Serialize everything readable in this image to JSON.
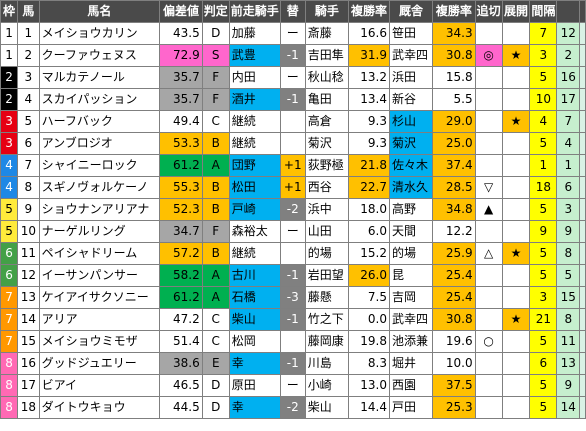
{
  "headers": [
    "枠",
    "馬",
    "馬名",
    "偏差値",
    "判定",
    "前走騎手",
    "替",
    "騎手",
    "複勝率",
    "厩舎",
    "複勝率",
    "追切",
    "展開",
    "間隔",
    "",
    ""
  ],
  "rows": [
    {
      "waku": "1",
      "uma": "1",
      "name": "メイショウカリン",
      "hensa": "43.5",
      "grade": "D",
      "prev": "加藤",
      "kae": "ー",
      "jockey": "斎藤",
      "jrate": "16.6",
      "stable": "笹田",
      "srate": "34.3",
      "oikiri": "",
      "tenkai": "",
      "kankaku": "7",
      "x1": "12",
      "x2": ""
    },
    {
      "waku": "1",
      "uma": "2",
      "name": "クーファウェヌス",
      "hensa": "72.9",
      "grade": "S",
      "prev": "武豊",
      "kae": "-1",
      "jockey": "吉田隼",
      "jrate": "31.9",
      "stable": "武幸四",
      "srate": "30.8",
      "oikiri": "◎",
      "tenkai": "★",
      "kankaku": "3",
      "x1": "2",
      "x2": ""
    },
    {
      "waku": "2",
      "uma": "3",
      "name": "マルカテノール",
      "hensa": "35.7",
      "grade": "F",
      "prev": "内田",
      "kae": "ー",
      "jockey": "秋山稔",
      "jrate": "13.2",
      "stable": "浜田",
      "srate": "15.8",
      "oikiri": "",
      "tenkai": "",
      "kankaku": "5",
      "x1": "16",
      "x2": ""
    },
    {
      "waku": "2",
      "uma": "4",
      "name": "スカイパッション",
      "hensa": "35.7",
      "grade": "F",
      "prev": "酒井",
      "kae": "-1",
      "jockey": "亀田",
      "jrate": "13.4",
      "stable": "新谷",
      "srate": "5.5",
      "oikiri": "",
      "tenkai": "",
      "kankaku": "10",
      "x1": "17",
      "x2": ""
    },
    {
      "waku": "3",
      "uma": "5",
      "name": "ハーフバック",
      "hensa": "49.4",
      "grade": "C",
      "prev": "継続",
      "kae": "",
      "jockey": "高倉",
      "jrate": "9.3",
      "stable": "杉山",
      "srate": "29.0",
      "oikiri": "",
      "tenkai": "★",
      "kankaku": "4",
      "x1": "7",
      "x2": ""
    },
    {
      "waku": "3",
      "uma": "6",
      "name": "アンブロジオ",
      "hensa": "53.3",
      "grade": "B",
      "prev": "継続",
      "kae": "",
      "jockey": "菊沢",
      "jrate": "9.3",
      "stable": "菊沢",
      "srate": "25.0",
      "oikiri": "",
      "tenkai": "",
      "kankaku": "5",
      "x1": "4",
      "x2": ""
    },
    {
      "waku": "4",
      "uma": "7",
      "name": "シャイニーロック",
      "hensa": "61.2",
      "grade": "A",
      "prev": "団野",
      "kae": "+1",
      "jockey": "荻野極",
      "jrate": "21.8",
      "stable": "佐々木",
      "srate": "37.4",
      "oikiri": "",
      "tenkai": "",
      "kankaku": "1",
      "x1": "1",
      "x2": ""
    },
    {
      "waku": "4",
      "uma": "8",
      "name": "スギノヴォルケーノ",
      "hensa": "55.3",
      "grade": "B",
      "prev": "松田",
      "kae": "+1",
      "jockey": "西谷",
      "jrate": "22.7",
      "stable": "清水久",
      "srate": "28.5",
      "oikiri": "▽",
      "tenkai": "",
      "kankaku": "18",
      "x1": "6",
      "x2": ""
    },
    {
      "waku": "5",
      "uma": "9",
      "name": "ショウナンアリアナ",
      "hensa": "52.3",
      "grade": "B",
      "prev": "戸崎",
      "kae": "-2",
      "jockey": "浜中",
      "jrate": "18.0",
      "stable": "高野",
      "srate": "34.8",
      "oikiri": "▲",
      "tenkai": "",
      "kankaku": "5",
      "x1": "3",
      "x2": ""
    },
    {
      "waku": "5",
      "uma": "10",
      "name": "ナーゲルリング",
      "hensa": "34.7",
      "grade": "F",
      "prev": "森裕太",
      "kae": "ー",
      "jockey": "山田",
      "jrate": "6.0",
      "stable": "天間",
      "srate": "12.2",
      "oikiri": "",
      "tenkai": "",
      "kankaku": "9",
      "x1": "9",
      "x2": ""
    },
    {
      "waku": "6",
      "uma": "11",
      "name": "ペイシャドリーム",
      "hensa": "57.2",
      "grade": "B",
      "prev": "継続",
      "kae": "",
      "jockey": "的場",
      "jrate": "15.2",
      "stable": "的場",
      "srate": "25.9",
      "oikiri": "△",
      "tenkai": "★",
      "kankaku": "5",
      "x1": "8",
      "x2": ""
    },
    {
      "waku": "6",
      "uma": "12",
      "name": "イーサンパンサー",
      "hensa": "58.2",
      "grade": "A",
      "prev": "古川",
      "kae": "-1",
      "jockey": "岩田望",
      "jrate": "26.0",
      "stable": "昆",
      "srate": "25.4",
      "oikiri": "",
      "tenkai": "",
      "kankaku": "5",
      "x1": "5",
      "x2": ""
    },
    {
      "waku": "7",
      "uma": "13",
      "name": "ケイアイサクソニー",
      "hensa": "61.2",
      "grade": "A",
      "prev": "石橋",
      "kae": "-3",
      "jockey": "藤懸",
      "jrate": "7.5",
      "stable": "吉岡",
      "srate": "25.4",
      "oikiri": "",
      "tenkai": "",
      "kankaku": "3",
      "x1": "15",
      "x2": ""
    },
    {
      "waku": "7",
      "uma": "14",
      "name": "アリア",
      "hensa": "47.2",
      "grade": "C",
      "prev": "柴山",
      "kae": "-1",
      "jockey": "竹之下",
      "jrate": "0.0",
      "stable": "武幸四",
      "srate": "30.8",
      "oikiri": "",
      "tenkai": "★",
      "kankaku": "21",
      "x1": "8",
      "x2": ""
    },
    {
      "waku": "7",
      "uma": "15",
      "name": "メイショウミモザ",
      "hensa": "51.4",
      "grade": "C",
      "prev": "松岡",
      "kae": "",
      "jockey": "藤岡康",
      "jrate": "19.8",
      "stable": "池添兼",
      "srate": "19.6",
      "oikiri": "○",
      "tenkai": "",
      "kankaku": "5",
      "x1": "11",
      "x2": ""
    },
    {
      "waku": "8",
      "uma": "16",
      "name": "グッドジュエリー",
      "hensa": "38.6",
      "grade": "E",
      "prev": "幸",
      "kae": "-1",
      "jockey": "川島",
      "jrate": "8.3",
      "stable": "堀井",
      "srate": "10.0",
      "oikiri": "",
      "tenkai": "",
      "kankaku": "6",
      "x1": "13",
      "x2": ""
    },
    {
      "waku": "8",
      "uma": "17",
      "name": "ビアイ",
      "hensa": "46.5",
      "grade": "D",
      "prev": "原田",
      "kae": "ー",
      "jockey": "小崎",
      "jrate": "13.0",
      "stable": "西園",
      "srate": "37.5",
      "oikiri": "",
      "tenkai": "",
      "kankaku": "5",
      "x1": "9",
      "x2": ""
    },
    {
      "waku": "8",
      "uma": "18",
      "name": "ダイトウキョウ",
      "hensa": "44.5",
      "grade": "D",
      "prev": "幸",
      "kae": "-2",
      "jockey": "柴山",
      "jrate": "14.4",
      "stable": "戸田",
      "srate": "25.3",
      "oikiri": "",
      "tenkai": "",
      "kankaku": "5",
      "x1": "14",
      "x2": ""
    }
  ],
  "colors": {
    "waku1": "#ffffff",
    "waku2": "#000000",
    "waku3": "#e60012",
    "waku4": "#1e88e5",
    "waku5": "#ffeb3b",
    "waku6": "#43a047",
    "waku7": "#ff9800",
    "waku8": "#ff69b4",
    "hensa_s": "#ff66cc",
    "hensa_a": "#00b050",
    "hensa_b": "#ffc000",
    "hensa_low": "#5b9bd5",
    "prev_changed": "#00b0f0",
    "minus": "#808080",
    "plus": "#ffc000",
    "jrate_yellow": "#ffc000",
    "srate_yellow": "#ffc000",
    "stable_blue": "#00b0f0",
    "kankaku_yellow": "#ffff00",
    "x1_green": "#c6efce"
  }
}
